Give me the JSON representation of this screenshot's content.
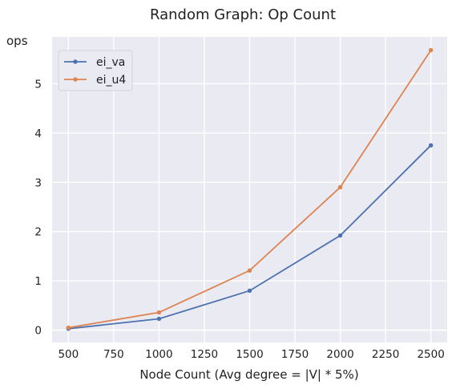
{
  "chart_data": {
    "type": "line",
    "title": "Random Graph: Op Count",
    "xlabel": "Node Count (Avg degree = |V| * 5%)",
    "ylabel": "ops",
    "y_scale_label": "1e7",
    "x": [
      500,
      1000,
      1500,
      2000,
      2500
    ],
    "xlim": [
      410,
      2590
    ],
    "ylim": [
      -0.25,
      5.95
    ],
    "x_ticks": [
      500,
      750,
      1000,
      1250,
      1500,
      1750,
      2000,
      2250,
      2500
    ],
    "y_ticks": [
      0,
      1,
      2,
      3,
      4,
      5
    ],
    "grid": true,
    "legend_position": "top-left",
    "series": [
      {
        "name": "ei_va",
        "color": "#4c72b0",
        "values": [
          0.03,
          0.23,
          0.8,
          1.92,
          3.75
        ]
      },
      {
        "name": "ei_u4",
        "color": "#dd8452",
        "values": [
          0.05,
          0.36,
          1.21,
          2.9,
          5.68
        ]
      }
    ]
  },
  "style": {
    "plot_bg": "#eaeaf2",
    "grid_color": "#ffffff"
  }
}
